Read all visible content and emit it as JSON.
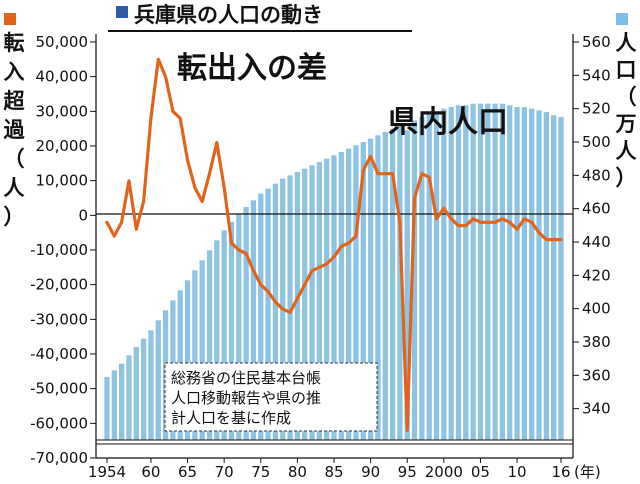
{
  "chart_data": {
    "type": "bar+line",
    "title": "兵庫県の人口の動き",
    "left_axis_label": "転入超過（人）",
    "right_axis_label": "人口（万人）",
    "left_ylim": [
      -70000,
      50000
    ],
    "left_ticks": [
      "50,000",
      "40,000",
      "30,000",
      "20,000",
      "10,000",
      "0",
      "-10,000",
      "-20,000",
      "-30,000",
      "-40,000",
      "-50,000",
      "-60,000",
      "-70,000"
    ],
    "right_ylim": [
      320,
      560
    ],
    "right_ticks": [
      "560",
      "540",
      "520",
      "500",
      "480",
      "460",
      "440",
      "420",
      "400",
      "380",
      "360",
      "340"
    ],
    "x_tick_labels": [
      "1954",
      "60",
      "65",
      "70",
      "75",
      "80",
      "85",
      "90",
      "95",
      "2000",
      "05",
      "10",
      "16"
    ],
    "x_unit": "(年)",
    "series_bar_label": "県内人口",
    "series_line_label": "転出入の差",
    "note_lines": [
      "総務省の住民基本台帳",
      "人口移動報告や県の推",
      "計人口を基に作成"
    ],
    "colors": {
      "bar": "#8ec3e3",
      "line": "#e0641c",
      "title_marker": "#2e5aa8",
      "left_marker": "#e0641c",
      "right_marker": "#7fbde6"
    },
    "years": [
      1954,
      1955,
      1956,
      1957,
      1958,
      1959,
      1960,
      1961,
      1962,
      1963,
      1964,
      1965,
      1966,
      1967,
      1968,
      1969,
      1970,
      1971,
      1972,
      1973,
      1974,
      1975,
      1976,
      1977,
      1978,
      1979,
      1980,
      1981,
      1982,
      1983,
      1984,
      1985,
      1986,
      1987,
      1988,
      1989,
      1990,
      1991,
      1992,
      1993,
      1994,
      1995,
      1996,
      1997,
      1998,
      1999,
      2000,
      2001,
      2002,
      2003,
      2004,
      2005,
      2006,
      2007,
      2008,
      2009,
      2010,
      2011,
      2012,
      2013,
      2014,
      2015,
      2016
    ],
    "population_man": [
      359,
      363,
      367,
      372,
      377,
      382,
      387,
      393,
      399,
      405,
      411,
      417,
      423,
      429,
      435,
      441,
      447,
      452,
      457,
      461,
      465,
      469,
      472,
      475,
      478,
      480,
      482,
      484,
      486,
      488,
      490,
      492,
      494,
      496,
      498,
      500,
      502,
      504,
      506,
      508,
      510,
      507,
      513,
      515,
      517,
      518,
      520,
      521,
      522,
      522,
      523,
      523,
      523,
      523,
      523,
      522,
      521,
      521,
      520,
      519,
      518,
      516,
      515
    ],
    "net_migration": [
      -2000,
      -6000,
      -2000,
      10000,
      -4000,
      4000,
      28000,
      45000,
      40000,
      30000,
      28000,
      16000,
      8000,
      4000,
      12000,
      21000,
      8000,
      -8000,
      -10000,
      -11000,
      -16000,
      -20000,
      -22000,
      -25000,
      -27000,
      -28000,
      -24000,
      -20000,
      -16000,
      -15000,
      -14000,
      -12000,
      -9000,
      -8000,
      -6000,
      13000,
      17000,
      12000,
      12000,
      12000,
      -2000,
      -62000,
      5000,
      12000,
      11000,
      -1000,
      2000,
      -1000,
      -3000,
      -3000,
      -1000,
      -2000,
      -2000,
      -2000,
      -1000,
      -2000,
      -4000,
      -1000,
      -2000,
      -5000,
      -7000,
      -7000,
      -7000
    ]
  }
}
